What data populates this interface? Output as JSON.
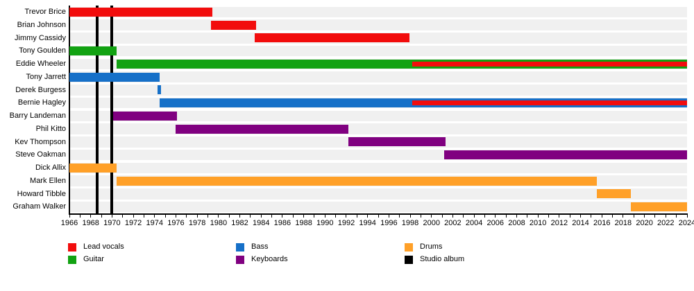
{
  "chart_data": {
    "type": "timeline",
    "title": "",
    "xlabel": "",
    "ylabel": "",
    "x_axis": {
      "min": 1966,
      "max": 2024,
      "minor_tick_step": 1,
      "tick_labels": [
        1966,
        1968,
        1970,
        1972,
        1974,
        1976,
        1978,
        1980,
        1982,
        1984,
        1986,
        1988,
        1990,
        1992,
        1994,
        1996,
        1998,
        2000,
        2002,
        2004,
        2006,
        2008,
        2010,
        2012,
        2014,
        2016,
        2018,
        2020,
        2022,
        2024
      ]
    },
    "layout_hints": {
      "grid": false,
      "legend_position": "bottom",
      "row_band_color": "#f0f0f0"
    },
    "colors": {
      "Lead vocals": "#f20d0d",
      "Guitar": "#12a212",
      "Bass": "#1670c8",
      "Keyboards": "#800080",
      "Drums": "#ffa028",
      "Studio album": "#000000"
    },
    "rows": [
      {
        "name": "Trevor Brice",
        "segments": [
          {
            "role": "Lead vocals",
            "start": 1966,
            "end": 1979.4
          }
        ]
      },
      {
        "name": "Brian Johnson",
        "segments": [
          {
            "role": "Lead vocals",
            "start": 1979.3,
            "end": 1983.5
          }
        ]
      },
      {
        "name": "Jimmy Cassidy",
        "segments": [
          {
            "role": "Lead vocals",
            "start": 1983.4,
            "end": 1997.9
          }
        ]
      },
      {
        "name": "Tony Goulden",
        "segments": [
          {
            "role": "Guitar",
            "start": 1966,
            "end": 1970.4
          }
        ]
      },
      {
        "name": "Eddie Wheeler",
        "segments": [
          {
            "role": "Guitar",
            "start": 1970.4,
            "end": 2024
          }
        ],
        "overlays": [
          {
            "role": "Lead vocals",
            "start": 1998.2,
            "end": 2024
          }
        ]
      },
      {
        "name": "Tony Jarrett",
        "segments": [
          {
            "role": "Bass",
            "start": 1966,
            "end": 1974.5
          }
        ]
      },
      {
        "name": "Derek Burgess",
        "segments": [
          {
            "role": "Bass",
            "start": 1974.3,
            "end": 1974.6
          }
        ]
      },
      {
        "name": "Bernie Hagley",
        "segments": [
          {
            "role": "Bass",
            "start": 1974.5,
            "end": 2024
          }
        ],
        "overlays": [
          {
            "role": "Lead vocals",
            "start": 1998.2,
            "end": 2024
          }
        ]
      },
      {
        "name": "Barry Landeman",
        "segments": [
          {
            "role": "Keyboards",
            "start": 1970.1,
            "end": 1976.1
          }
        ]
      },
      {
        "name": "Phil Kitto",
        "segments": [
          {
            "role": "Keyboards",
            "start": 1976.0,
            "end": 1992.2
          }
        ]
      },
      {
        "name": "Kev Thompson",
        "segments": [
          {
            "role": "Keyboards",
            "start": 1992.2,
            "end": 2001.3
          }
        ]
      },
      {
        "name": "Steve Oakman",
        "segments": [
          {
            "role": "Keyboards",
            "start": 2001.2,
            "end": 2024
          }
        ]
      },
      {
        "name": "Dick Allix",
        "segments": [
          {
            "role": "Drums",
            "start": 1966,
            "end": 1970.4
          }
        ]
      },
      {
        "name": "Mark Ellen",
        "segments": [
          {
            "role": "Drums",
            "start": 1970.4,
            "end": 2015.5
          }
        ]
      },
      {
        "name": "Howard Tibble",
        "segments": [
          {
            "role": "Drums",
            "start": 2015.5,
            "end": 2018.7
          }
        ]
      },
      {
        "name": "Graham Walker",
        "segments": [
          {
            "role": "Drums",
            "start": 2018.7,
            "end": 2024
          }
        ]
      }
    ],
    "album_lines": {
      "label": "Studio album",
      "years": [
        1968.6,
        1970.0
      ]
    },
    "legend": [
      {
        "label": "Lead vocals",
        "color": "#f20d0d"
      },
      {
        "label": "Guitar",
        "color": "#12a212"
      },
      {
        "label": "Bass",
        "color": "#1670c8"
      },
      {
        "label": "Keyboards",
        "color": "#800080"
      },
      {
        "label": "Drums",
        "color": "#ffa028"
      },
      {
        "label": "Studio album",
        "color": "#000000"
      }
    ]
  }
}
